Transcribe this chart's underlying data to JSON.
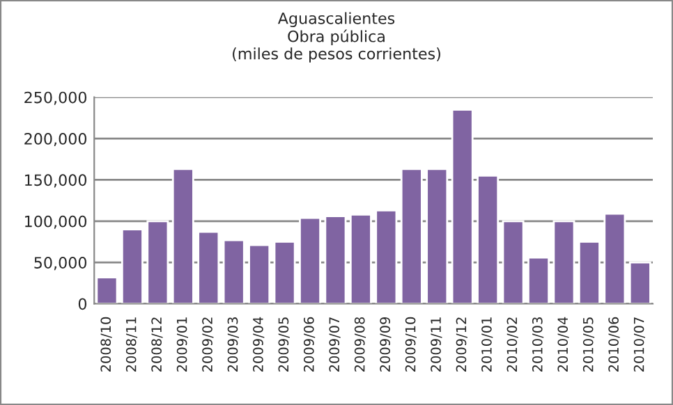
{
  "chart_data": {
    "type": "bar",
    "title": "Aguascalientes\nObra pública\n(miles de pesos corrientes)",
    "categories": [
      "2008/10",
      "2008/11",
      "2008/12",
      "2009/01",
      "2009/02",
      "2009/03",
      "2009/04",
      "2009/05",
      "2009/06",
      "2009/07",
      "2009/08",
      "2009/09",
      "2009/10",
      "2009/11",
      "2009/12",
      "2010/01",
      "2010/02",
      "2010/03",
      "2010/04",
      "2010/05",
      "2010/06",
      "2010/07"
    ],
    "values": [
      32000,
      90000,
      100000,
      163000,
      87000,
      77000,
      71000,
      75000,
      104000,
      106000,
      108000,
      113000,
      163000,
      163000,
      235000,
      155000,
      100000,
      56000,
      100000,
      75000,
      109000,
      50000
    ],
    "color": "#8064a2",
    "ylim": [
      0,
      250000
    ],
    "yticks": [
      {
        "value": 0,
        "label": "0"
      },
      {
        "value": 50000,
        "label": "50,000"
      },
      {
        "value": 100000,
        "label": "100,000"
      },
      {
        "value": 150000,
        "label": "150,000"
      },
      {
        "value": 200000,
        "label": "200,000"
      },
      {
        "value": 250000,
        "label": "250,000"
      }
    ],
    "grid": "y"
  }
}
